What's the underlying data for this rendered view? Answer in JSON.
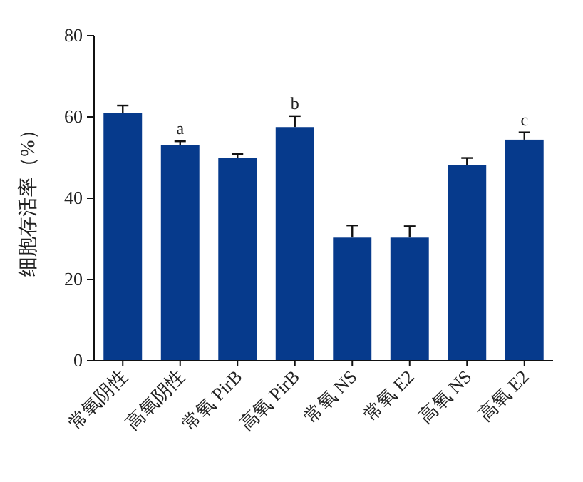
{
  "chart_data": {
    "type": "bar",
    "ylabel": "细胞存活率（%）",
    "categories": [
      "常氧阴性",
      "高氧阴性",
      "常氧 PirB",
      "高氧 PirB",
      "常氧 NS",
      "常氧 E2",
      "高氧 NS",
      "高氧 E2"
    ],
    "values": [
      61,
      53,
      49.9,
      57.5,
      30.3,
      30.3,
      48.1,
      54.4
    ],
    "errors": [
      1.8,
      1.0,
      1.0,
      2.7,
      3.0,
      2.8,
      1.8,
      1.8
    ],
    "color": "#063a8c",
    "ylim": [
      0,
      80
    ],
    "yticks": [
      0,
      20,
      40,
      60,
      80
    ],
    "grid": false,
    "annotations": [
      {
        "text": "a",
        "x": "高氧阴性",
        "y": 54
      },
      {
        "text": "b",
        "x": "高氧 PirB",
        "y": 60.2
      },
      {
        "text": "c",
        "x": "高氧 E2",
        "y": 56.2
      }
    ]
  }
}
